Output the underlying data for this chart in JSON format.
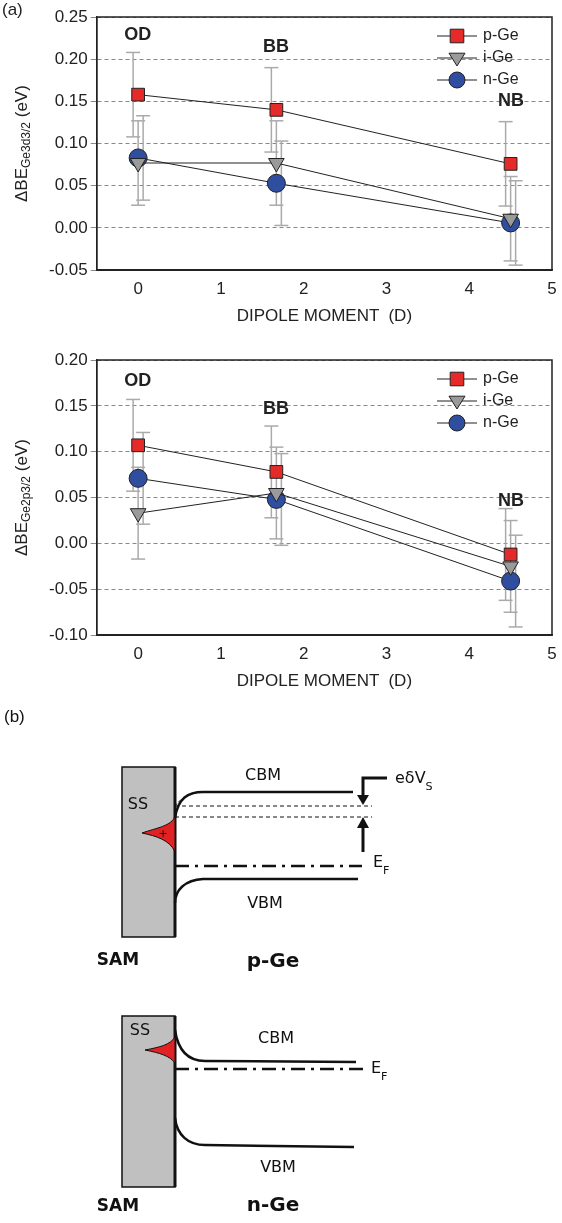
{
  "chart_data": [
    {
      "type": "line",
      "xlabel": "DIPOLE MOMENT  (D)",
      "ylabel": "ΔBE$_{Ge3d3/2}$ (eV)",
      "x": [
        0,
        1.67,
        4.5
      ],
      "series": [
        {
          "name": "p-Ge",
          "color": "#e52a2a",
          "marker": "square",
          "values": [
            0.158,
            0.14,
            0.076
          ],
          "errors": [
            0.05,
            0.05,
            0.05
          ]
        },
        {
          "name": "i-Ge",
          "color": "#9a9a9a",
          "marker": "triangle",
          "values": [
            0.077,
            0.077,
            0.011
          ],
          "errors": [
            0.05,
            0.05,
            0.05
          ]
        },
        {
          "name": "n-Ge",
          "color": "#2f4ea0",
          "marker": "circle",
          "values": [
            0.083,
            0.053,
            0.006
          ],
          "errors": [
            0.05,
            0.05,
            0.05
          ]
        }
      ],
      "xlim": [
        -0.5,
        5
      ],
      "xticks": [
        0,
        1,
        2,
        3,
        4,
        5
      ],
      "ylim": [
        -0.05,
        0.25
      ],
      "yticks": [
        {
          "value": -0.05,
          "label": "-0.05"
        },
        {
          "value": 0,
          "label": "0.00"
        },
        {
          "value": 0.05,
          "label": "0.05"
        },
        {
          "value": 0.1,
          "label": "0.10"
        },
        {
          "value": 0.15,
          "label": "0.15"
        },
        {
          "value": 0.2,
          "label": "0.20"
        },
        {
          "value": 0.25,
          "label": "0.25"
        }
      ],
      "grid": "y",
      "legend": "top right",
      "line_style": "solid",
      "annotations": [
        "(a)",
        "OD",
        "BB",
        "NB"
      ]
    },
    {
      "type": "line",
      "xlabel": "DIPOLE MOMENT  (D)",
      "ylabel": "ΔBE$_{Ge2p3/2}$ (eV)",
      "x": [
        0,
        1.67,
        4.5
      ],
      "series": [
        {
          "name": "p-Ge",
          "color": "#e52a2a",
          "marker": "square",
          "values": [
            0.107,
            0.078,
            -0.012
          ],
          "errors": [
            0.05,
            0.05,
            0.05
          ]
        },
        {
          "name": "i-Ge",
          "color": "#9a9a9a",
          "marker": "triangle",
          "values": [
            0.033,
            0.055,
            -0.025
          ],
          "errors": [
            0.05,
            0.05,
            0.05
          ]
        },
        {
          "name": "n-Ge",
          "color": "#2f4ea0",
          "marker": "circle",
          "values": [
            0.071,
            0.048,
            -0.041
          ],
          "errors": [
            0.05,
            0.05,
            0.05
          ]
        }
      ],
      "xlim": [
        -0.5,
        5
      ],
      "xticks": [
        0,
        1,
        2,
        3,
        4,
        5
      ],
      "ylim": [
        -0.1,
        0.2
      ],
      "yticks": [
        {
          "value": -0.1,
          "label": "-0.10"
        },
        {
          "value": -0.05,
          "label": "-0.05"
        },
        {
          "value": 0,
          "label": "0.00"
        },
        {
          "value": 0.05,
          "label": "0.05"
        },
        {
          "value": 0.1,
          "label": "0.10"
        },
        {
          "value": 0.15,
          "label": "0.15"
        },
        {
          "value": 0.2,
          "label": "0.20"
        }
      ],
      "grid": "y",
      "legend": "top right",
      "line_style": "solid",
      "annotations": [
        "OD",
        "BB",
        "NB"
      ]
    },
    {
      "type": "other",
      "annotations": [
        "(b)",
        "SS",
        "+",
        "CBM",
        "eδV$_{S}$",
        "E$_{F}$",
        "VBM",
        "SAM",
        "p-Ge",
        "SS",
        "CBM",
        "E$_{F}$",
        "VBM",
        "SAM",
        "n-Ge"
      ]
    }
  ]
}
